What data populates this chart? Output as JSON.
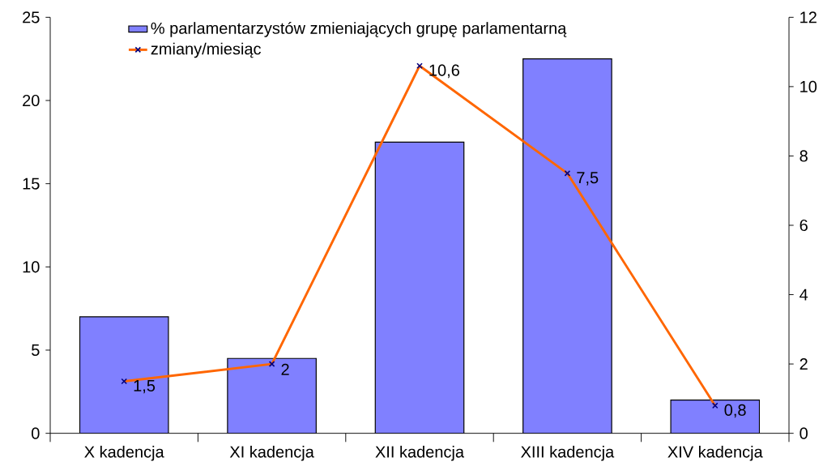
{
  "chart_data": {
    "type": "bar",
    "categories": [
      "X kadencja",
      "XI kadencja",
      "XII kadencja",
      "XIII kadencja",
      "XIV kadencja"
    ],
    "series": [
      {
        "name": "% parlamentarzystów zmieniających grupę parlamentarną",
        "color": "#8080ff",
        "values": [
          7,
          4.5,
          17.5,
          22.5,
          2
        ]
      },
      {
        "name": "zmiany/miesiąc",
        "type": "line",
        "axis": "y2",
        "color": "#ff6600",
        "values": [
          1.5,
          2,
          10.6,
          7.5,
          0.8
        ],
        "value_labels": [
          "1,5",
          "2",
          "10,6",
          "7,5",
          "0,8"
        ]
      }
    ],
    "ylim": [
      0,
      25
    ],
    "yticks": [
      0,
      5,
      10,
      15,
      20,
      25
    ],
    "y2lim": [
      0,
      12
    ],
    "y2ticks": [
      0,
      2,
      4,
      6,
      8,
      10,
      12
    ],
    "marker": "cross",
    "legend": "top left",
    "grid": false
  }
}
